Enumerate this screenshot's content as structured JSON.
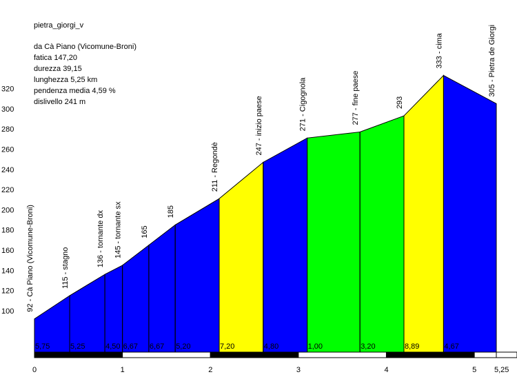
{
  "chart_data": {
    "type": "area",
    "title": "pietra_giorgi_v",
    "stats": [
      "da Cà Piano (Vicomune-Broni)",
      "fatica 147,20",
      "durezza 39,15",
      "lunghezza 5,25 km",
      "pendenza media 4,59 %",
      "dislivello 241 m"
    ],
    "xlim": [
      0,
      5.25
    ],
    "ylim": [
      100,
      320
    ],
    "x_ticks": [
      "0",
      "1",
      "2",
      "3",
      "4",
      "5",
      "5,25"
    ],
    "x_tick_values": [
      0,
      1,
      2,
      3,
      4,
      5,
      5.25
    ],
    "y_ticks": [
      100,
      120,
      140,
      160,
      180,
      200,
      220,
      240,
      260,
      280,
      300,
      320
    ],
    "grid": false,
    "points": [
      {
        "x": 0.0,
        "y": 92,
        "label": "92 - Cà Piano (Vicomune-Broni)"
      },
      {
        "x": 0.4,
        "y": 115,
        "label": "115 - stagno"
      },
      {
        "x": 0.8,
        "y": 136,
        "label": "136 - tornante dx"
      },
      {
        "x": 1.0,
        "y": 145,
        "label": "145 - tornante sx"
      },
      {
        "x": 1.3,
        "y": 165,
        "label": "165"
      },
      {
        "x": 1.6,
        "y": 185,
        "label": "185"
      },
      {
        "x": 2.1,
        "y": 211,
        "label": "211 - Regondè"
      },
      {
        "x": 2.6,
        "y": 247,
        "label": "247 - inizio paese"
      },
      {
        "x": 3.1,
        "y": 271,
        "label": "271 - Cigognola"
      },
      {
        "x": 3.7,
        "y": 277,
        "label": "277 - fine paese"
      },
      {
        "x": 4.2,
        "y": 293,
        "label": "293"
      },
      {
        "x": 4.65,
        "y": 333,
        "label": "333 - cima"
      },
      {
        "x": 5.25,
        "y": 305,
        "label": "305 - Pietra de Giorgi"
      }
    ],
    "segments": [
      {
        "gradient": "5,75",
        "color": "#0000ff"
      },
      {
        "gradient": "5,25",
        "color": "#0000ff"
      },
      {
        "gradient": "4,50",
        "color": "#0000ff"
      },
      {
        "gradient": "6,67",
        "color": "#0000ff"
      },
      {
        "gradient": "6,67",
        "color": "#0000ff"
      },
      {
        "gradient": "5,20",
        "color": "#0000ff"
      },
      {
        "gradient": "7,20",
        "color": "#ffff00"
      },
      {
        "gradient": "4,80",
        "color": "#0000ff"
      },
      {
        "gradient": "1,00",
        "color": "#00ff00"
      },
      {
        "gradient": "3,20",
        "color": "#00ff00"
      },
      {
        "gradient": "8,89",
        "color": "#ffff00"
      },
      {
        "gradient": "4,67",
        "color": "#0000ff"
      }
    ]
  }
}
